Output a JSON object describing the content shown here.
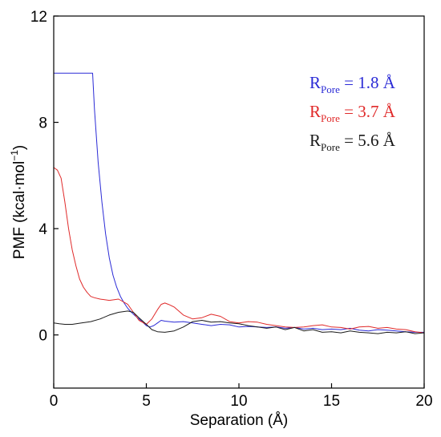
{
  "chart_data": {
    "type": "line",
    "xlabel": "Separation (Å)",
    "ylabel_main": "PMF (kcal·mol",
    "ylabel_sup": "−1",
    "ylabel_close": ")",
    "xlim": [
      0,
      20
    ],
    "ylim": [
      -2,
      12
    ],
    "xticks": [
      0,
      5,
      10,
      15,
      20
    ],
    "yticks": [
      0,
      4,
      8,
      12
    ],
    "grid": false,
    "legend_position": "top-right",
    "series": [
      {
        "label_main": "R",
        "label_sub": "Pore",
        "label_rest": " = 1.8 Å",
        "color": "#2b2bd6",
        "x": [
          0,
          0.5,
          1,
          1.5,
          2.1,
          2.2,
          2.4,
          2.6,
          2.8,
          3.0,
          3.2,
          3.4,
          3.6,
          3.8,
          4.0,
          4.2,
          4.4,
          4.6,
          4.8,
          5.0,
          5.2,
          5.4,
          5.6,
          5.8,
          6.0,
          6.5,
          7.0,
          7.5,
          8.0,
          8.5,
          9.0,
          9.5,
          10.0,
          10.5,
          11.0,
          11.5,
          12.0,
          12.5,
          13.0,
          13.5,
          14.0,
          14.5,
          15.0,
          15.5,
          16.0,
          16.5,
          17.0,
          17.5,
          18.0,
          18.5,
          19.0,
          19.5,
          20.0
        ],
        "y": [
          9.85,
          9.85,
          9.85,
          9.85,
          9.85,
          8.5,
          6.5,
          5.0,
          3.8,
          2.9,
          2.25,
          1.8,
          1.45,
          1.2,
          1.0,
          0.85,
          0.72,
          0.6,
          0.48,
          0.35,
          0.3,
          0.35,
          0.45,
          0.55,
          0.52,
          0.48,
          0.5,
          0.45,
          0.4,
          0.35,
          0.4,
          0.38,
          0.3,
          0.32,
          0.3,
          0.28,
          0.3,
          0.25,
          0.28,
          0.22,
          0.25,
          0.2,
          0.22,
          0.2,
          0.25,
          0.18,
          0.15,
          0.2,
          0.18,
          0.15,
          0.12,
          0.1,
          0.1
        ]
      },
      {
        "label_main": "R",
        "label_sub": "Pore",
        "label_rest": " = 3.7 Å",
        "color": "#e02a2a",
        "x": [
          0,
          0.2,
          0.4,
          0.6,
          0.8,
          1.0,
          1.2,
          1.4,
          1.6,
          1.8,
          2.0,
          2.2,
          2.5,
          3.0,
          3.5,
          4.0,
          4.3,
          4.6,
          5.0,
          5.3,
          5.6,
          5.8,
          6.0,
          6.2,
          6.5,
          7.0,
          7.5,
          8.0,
          8.5,
          9.0,
          9.5,
          10.0,
          10.5,
          11.0,
          11.5,
          12.0,
          12.5,
          13.0,
          13.5,
          14.0,
          14.5,
          15.0,
          15.5,
          16.0,
          16.5,
          17.0,
          17.5,
          18.0,
          18.5,
          19.0,
          19.5,
          20.0
        ],
        "y": [
          6.3,
          6.2,
          5.9,
          5.0,
          4.0,
          3.2,
          2.6,
          2.1,
          1.8,
          1.6,
          1.45,
          1.4,
          1.35,
          1.3,
          1.35,
          1.15,
          0.85,
          0.55,
          0.4,
          0.6,
          0.95,
          1.15,
          1.2,
          1.15,
          1.05,
          0.75,
          0.6,
          0.65,
          0.78,
          0.7,
          0.5,
          0.45,
          0.5,
          0.48,
          0.4,
          0.35,
          0.3,
          0.28,
          0.3,
          0.35,
          0.38,
          0.3,
          0.28,
          0.22,
          0.3,
          0.32,
          0.25,
          0.28,
          0.22,
          0.2,
          0.12,
          0.08
        ]
      },
      {
        "label_main": "R",
        "label_sub": "Pore",
        "label_rest": " = 5.6 Å",
        "color": "#1a1a1a",
        "x": [
          0,
          0.3,
          0.6,
          1.0,
          1.5,
          2.0,
          2.5,
          3.0,
          3.5,
          4.0,
          4.3,
          4.6,
          5.0,
          5.3,
          5.6,
          6.0,
          6.5,
          7.0,
          7.5,
          8.0,
          8.5,
          9.0,
          9.5,
          10.0,
          10.5,
          11.0,
          11.5,
          12.0,
          12.5,
          13.0,
          13.5,
          14.0,
          14.5,
          15.0,
          15.5,
          16.0,
          16.5,
          17.0,
          17.5,
          18.0,
          18.5,
          19.0,
          19.5,
          20.0
        ],
        "y": [
          0.45,
          0.42,
          0.4,
          0.4,
          0.45,
          0.5,
          0.6,
          0.75,
          0.85,
          0.9,
          0.85,
          0.65,
          0.4,
          0.2,
          0.12,
          0.1,
          0.15,
          0.3,
          0.5,
          0.55,
          0.48,
          0.5,
          0.45,
          0.42,
          0.35,
          0.3,
          0.25,
          0.3,
          0.2,
          0.28,
          0.15,
          0.2,
          0.1,
          0.12,
          0.08,
          0.15,
          0.1,
          0.08,
          0.05,
          0.1,
          0.08,
          0.12,
          0.05,
          0.08
        ]
      }
    ]
  }
}
